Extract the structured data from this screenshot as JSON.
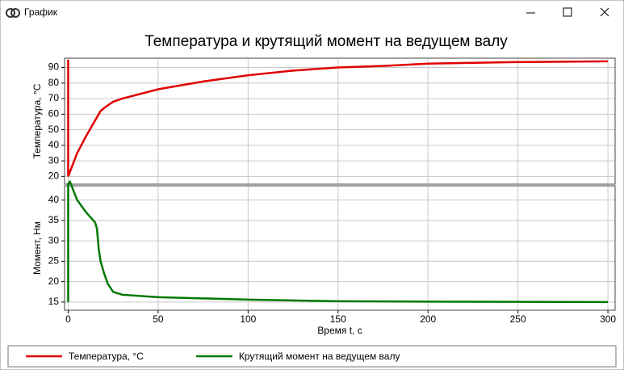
{
  "window": {
    "title": "График"
  },
  "chart_data": [
    {
      "type": "line",
      "title": "Температура и крутящий момент на ведущем валу",
      "y_label": "Температура, °C",
      "x": [
        0,
        0,
        0,
        5,
        10,
        15,
        18,
        20,
        25,
        30,
        40,
        50,
        60,
        75,
        100,
        125,
        150,
        175,
        200,
        250,
        300
      ],
      "series": [
        {
          "name": "Температура, °C",
          "color": "#e00000",
          "values": [
            95,
            20,
            20,
            35,
            46,
            56,
            62,
            64,
            68,
            70,
            73,
            76,
            78,
            81,
            85,
            88,
            90,
            91,
            92.5,
            93.5,
            94
          ]
        }
      ],
      "xlim": [
        -2,
        304
      ],
      "xticks": [
        0,
        50,
        100,
        150,
        200,
        250,
        300
      ],
      "ylim": [
        15,
        96
      ],
      "yticks": [
        20,
        30,
        40,
        50,
        60,
        70,
        80,
        90
      ],
      "grid": true
    },
    {
      "type": "line",
      "x_label": "Время t, c",
      "y_label": "Момент, Нм",
      "x": [
        0,
        0,
        0,
        1,
        5,
        10,
        15,
        16,
        17,
        18,
        20,
        22,
        25,
        30,
        50,
        100,
        150,
        200,
        300
      ],
      "series": [
        {
          "name": "Крутящий момент на ведущем валу",
          "color": "#007800",
          "values": [
            44,
            15,
            44,
            44.5,
            40,
            37,
            34.5,
            33,
            28,
            25,
            22,
            19.5,
            17.5,
            16.8,
            16.2,
            15.6,
            15.2,
            15.1,
            15
          ]
        }
      ],
      "xlim": [
        -2,
        304
      ],
      "xticks": [
        0,
        50,
        100,
        150,
        200,
        250,
        300
      ],
      "ylim": [
        13,
        43.5
      ],
      "yticks": [
        15,
        20,
        25,
        30,
        35,
        40
      ],
      "grid": true
    }
  ]
}
